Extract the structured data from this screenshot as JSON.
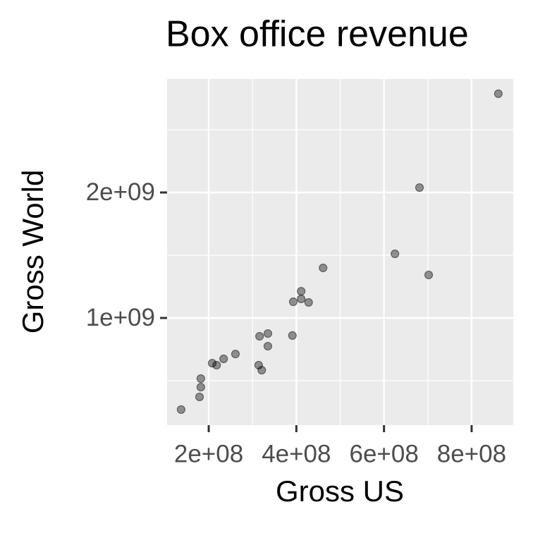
{
  "chart_data": {
    "type": "scatter",
    "title": "Box office revenue",
    "x_label": "Gross US",
    "y_label": "Gross World",
    "x": [
      137000000,
      179000000,
      182000000,
      182000000,
      208000000,
      218000000,
      234000000,
      261000000,
      314000000,
      321000000,
      316000000,
      335000000,
      335000000,
      391000000,
      393000000,
      411000000,
      411000000,
      428000000,
      461000000,
      625000000,
      681000000,
      702000000,
      861000000
    ],
    "values": [
      270000000,
      371000000,
      449000000,
      517000000,
      640000000,
      624000000,
      674000000,
      713000000,
      624000000,
      584000000,
      854000000,
      876000000,
      775000000,
      860000000,
      1129000000,
      1152000000,
      1213000000,
      1124000000,
      1399000000,
      1511000000,
      2039000000,
      1343000000,
      2787000000
    ],
    "color": "#000000",
    "alpha": 0.4,
    "xlim": [
      105000000,
      895000000
    ],
    "ylim": [
      146000000,
      2904500000
    ],
    "xticks": [
      {
        "value": 200000000,
        "label": "2e+08"
      },
      {
        "value": 400000000,
        "label": "4e+08"
      },
      {
        "value": 600000000,
        "label": "6e+08"
      },
      {
        "value": 800000000,
        "label": "8e+08"
      }
    ],
    "yticks": [
      {
        "value": 1000000000,
        "label": "1e+09"
      },
      {
        "value": 2000000000,
        "label": "2e+09"
      }
    ],
    "grid": true
  }
}
